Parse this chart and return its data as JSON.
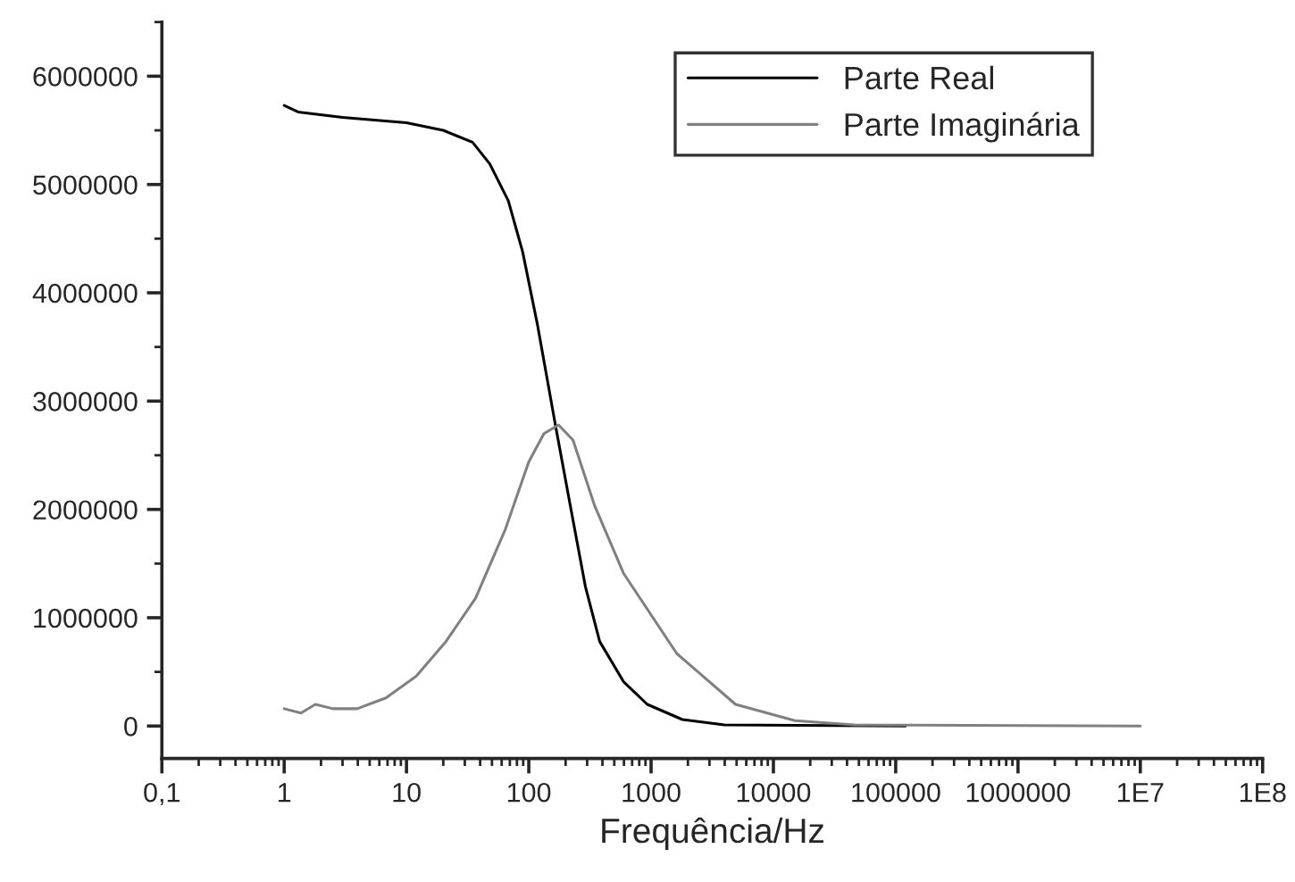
{
  "chart_data": {
    "type": "line",
    "xlabel": "Frequência/Hz",
    "log": "x",
    "xlim": [
      0.1,
      100000000
    ],
    "xticks": [
      {
        "value": 0.1,
        "label": "0,1"
      },
      1,
      10,
      100,
      1000,
      10000,
      100000,
      1000000,
      {
        "value": 10000000,
        "label": "1E7"
      },
      {
        "value": 100000000,
        "label": "1E8"
      }
    ],
    "ylim": [
      -300000,
      6500000
    ],
    "yticks": [
      0,
      1000000,
      2000000,
      3000000,
      4000000,
      5000000,
      6000000
    ],
    "grid": false,
    "legend": "top right",
    "marker": "none",
    "line_style": "solid",
    "series": [
      {
        "name": "Parte Real",
        "color": "#000000",
        "x": [
          1,
          1.3,
          3,
          10,
          20,
          34.7,
          48,
          68,
          89,
          118,
          165,
          218,
          290,
          380,
          595,
          930,
          1800,
          3970,
          120000
        ],
        "values": [
          5730000,
          5670000,
          5620000,
          5570000,
          5500000,
          5390000,
          5190000,
          4850000,
          4380000,
          3700000,
          2780000,
          2040000,
          1290000,
          780000,
          410000,
          200000,
          60000,
          10000,
          0
        ]
      },
      {
        "name": "Parte Imaginária",
        "color": "#808080",
        "x": [
          1,
          1.37,
          1.8,
          2.5,
          3.95,
          6.8,
          12,
          21,
          36.7,
          64,
          100,
          133,
          175,
          230,
          344,
          595,
          1620,
          4900,
          15000,
          46000,
          10000000
        ],
        "values": [
          160000,
          120000,
          200000,
          160000,
          160000,
          260000,
          460000,
          780000,
          1180000,
          1810000,
          2440000,
          2700000,
          2780000,
          2640000,
          2040000,
          1410000,
          670000,
          200000,
          50000,
          10000,
          0
        ]
      }
    ]
  }
}
